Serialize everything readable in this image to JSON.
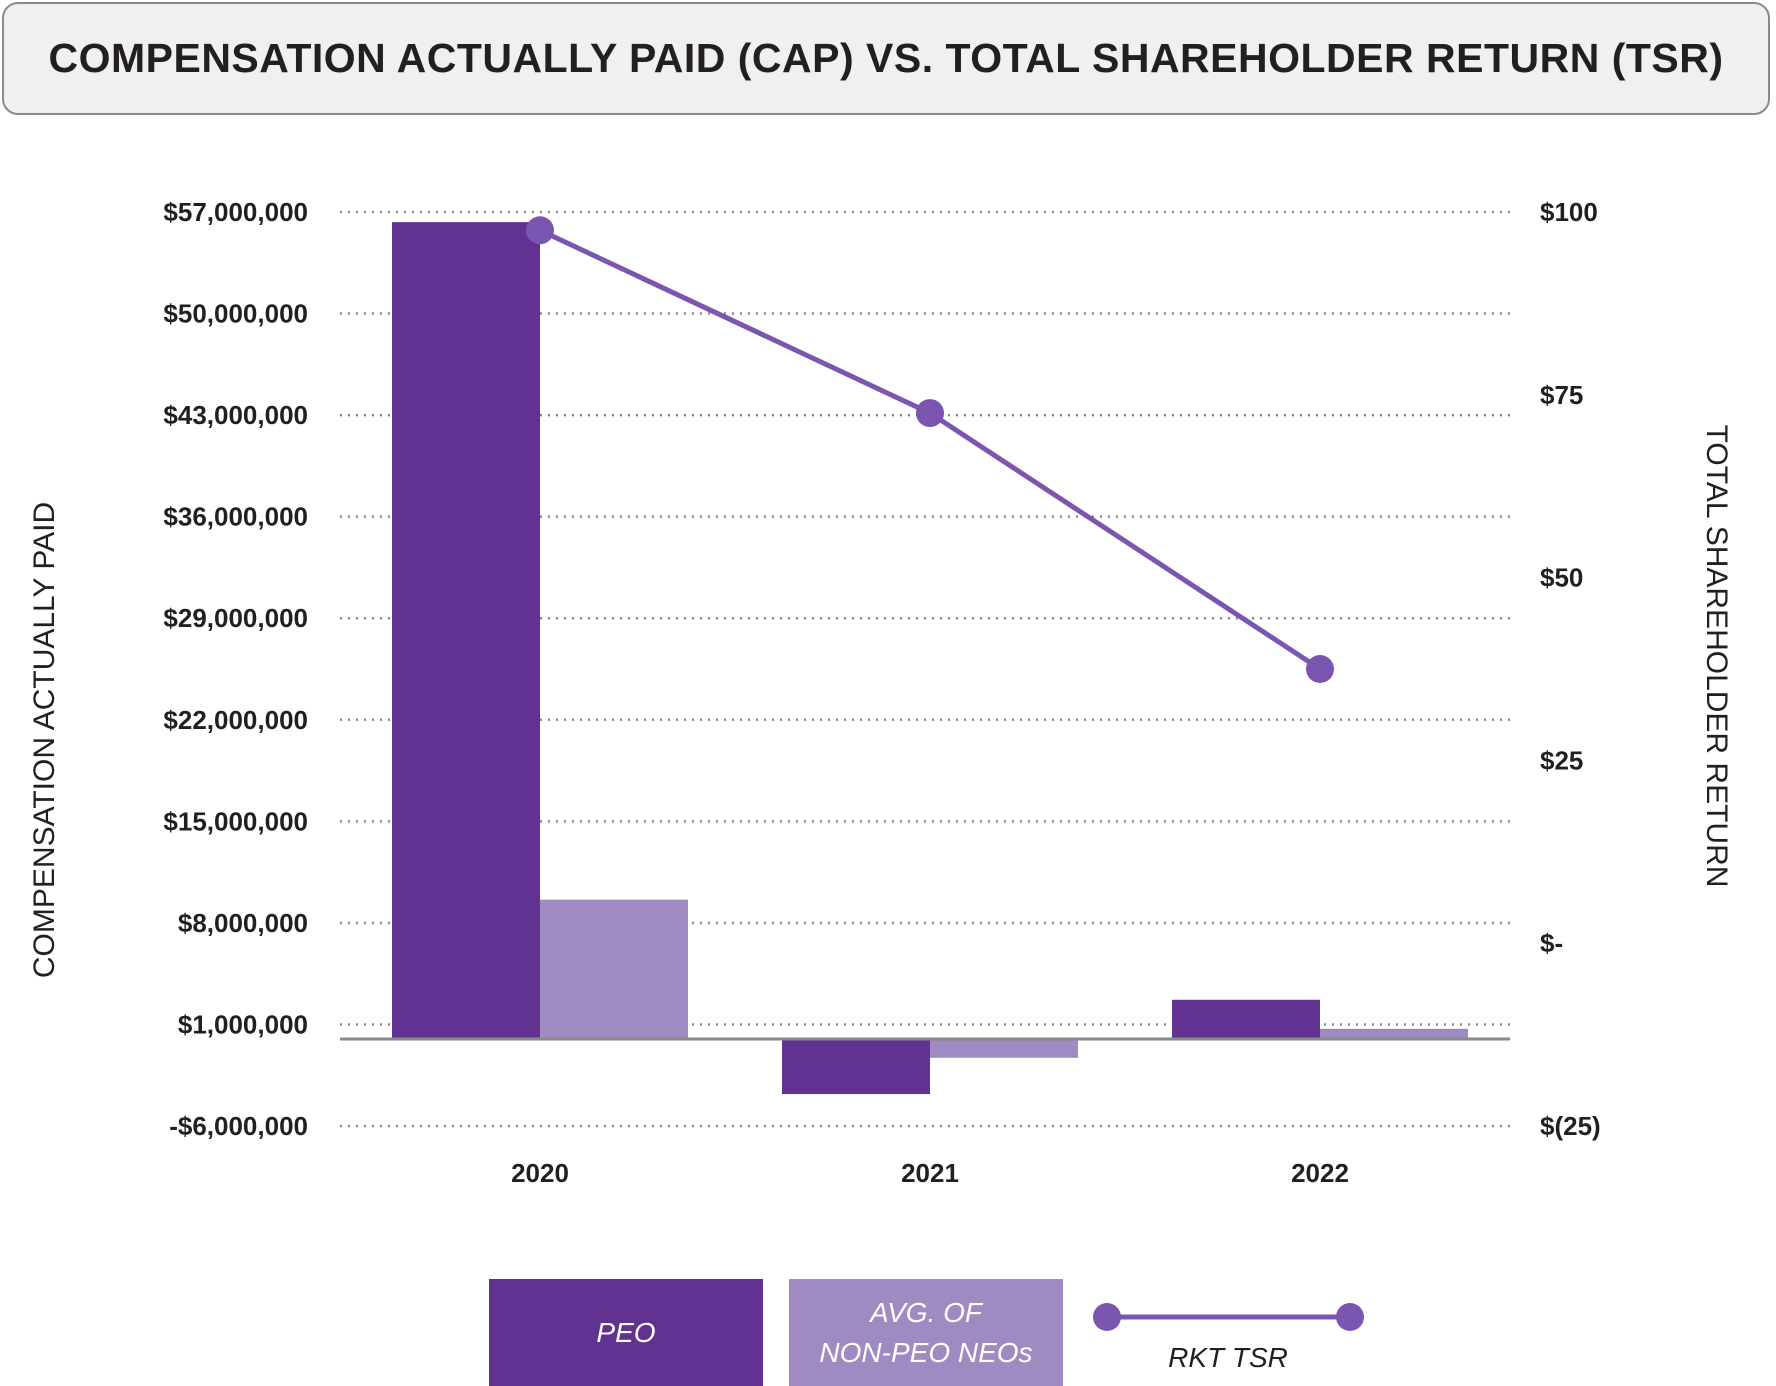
{
  "title": "COMPENSATION ACTUALLY PAID (CAP) VS. TOTAL SHAREHOLDER RETURN (TSR)",
  "colors": {
    "peo": "#623291",
    "neo": "#a08ac2",
    "tsr": "#7b56b1",
    "grid": "#8a8a8a",
    "baseline": "#8a8a8a"
  },
  "chart_data": {
    "type": "bar",
    "categories": [
      "2020",
      "2021",
      "2022"
    ],
    "series": [
      {
        "name": "PEO",
        "axis": "left",
        "values": [
          56300000,
          -3800000,
          2700000
        ]
      },
      {
        "name": "AVG. OF NON-PEO NEOs",
        "axis": "left",
        "values": [
          9600000,
          -1300000,
          700000
        ]
      },
      {
        "name": "RKT TSR",
        "type": "line",
        "axis": "right",
        "values": [
          97.5,
          72.5,
          37.5
        ]
      }
    ],
    "left_axis": {
      "label": "COMPENSATION ACTUALLY PAID",
      "ylim": [
        -6000000,
        57000000
      ],
      "ticks": [
        57000000,
        50000000,
        43000000,
        36000000,
        29000000,
        22000000,
        15000000,
        8000000,
        1000000,
        -6000000
      ],
      "tick_labels": [
        "$57,000,000",
        "$50,000,000",
        "$43,000,000",
        "$36,000,000",
        "$29,000,000",
        "$22,000,000",
        "$15,000,000",
        "$8,000,000",
        "$1,000,000",
        "-$6,000,000"
      ]
    },
    "right_axis": {
      "label": "TOTAL SHAREHOLDER RETURN",
      "ylim": [
        -25,
        100
      ],
      "ticks": [
        100,
        75,
        50,
        25,
        0,
        -25
      ],
      "tick_labels": [
        "$100",
        "$75",
        "$50",
        "$25",
        "$-",
        "$(25)"
      ]
    },
    "grid": true,
    "legend": {
      "position": "bottom",
      "peo_label": "PEO",
      "neo_label_line1": "AVG. OF",
      "neo_label_line2": "NON-PEO NEOs",
      "tsr_label": "RKT TSR"
    }
  }
}
